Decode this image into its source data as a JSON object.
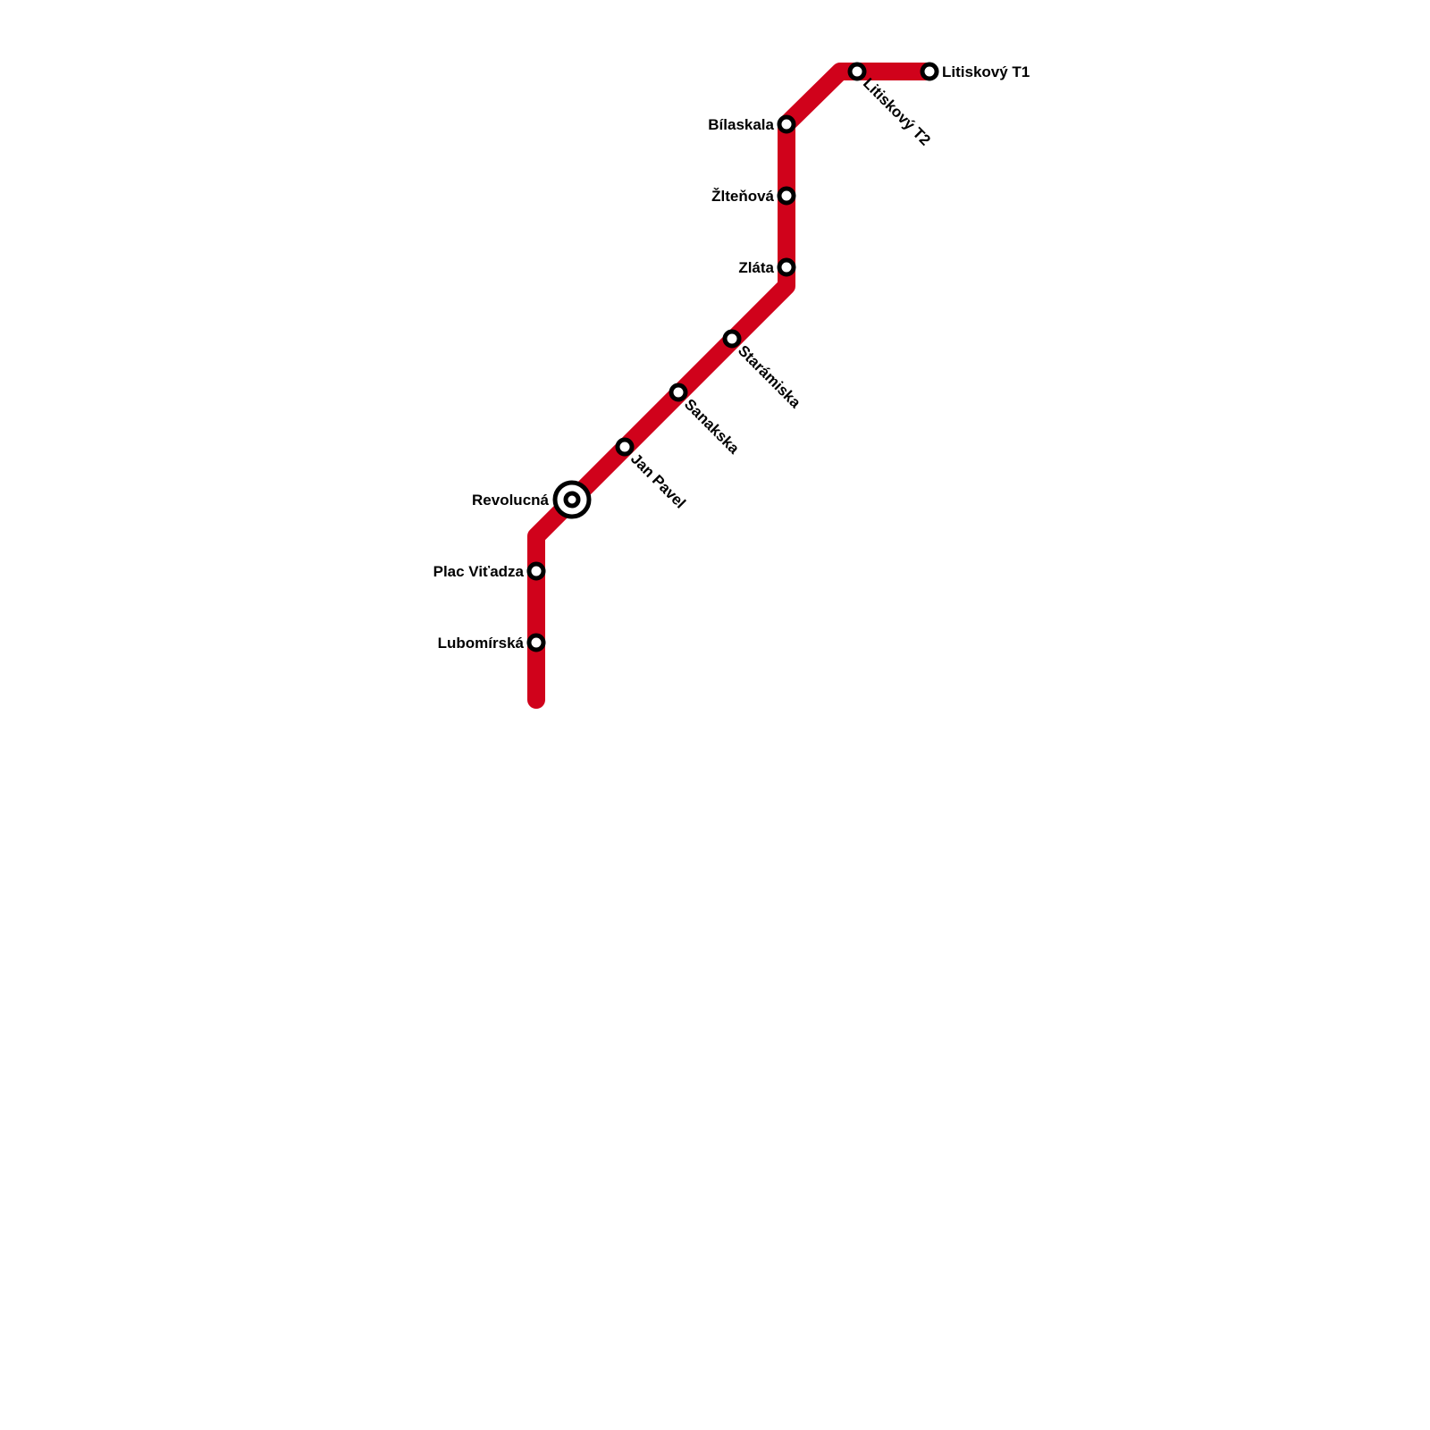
{
  "line": {
    "color": "#d0021b"
  },
  "stations": [
    {
      "id": "litiskovy-t1",
      "name": "Litiskový T1",
      "type": "station"
    },
    {
      "id": "litiskovy-t2",
      "name": "Litiskový T2",
      "type": "station"
    },
    {
      "id": "bilaskala",
      "name": "Bílaskala",
      "type": "station"
    },
    {
      "id": "zltenova",
      "name": "Žlteňová",
      "type": "station"
    },
    {
      "id": "zlata",
      "name": "Zláta",
      "type": "station"
    },
    {
      "id": "staramiska",
      "name": "Starámiska",
      "type": "station"
    },
    {
      "id": "sanakska",
      "name": "Sanakska",
      "type": "station"
    },
    {
      "id": "jan-pavel",
      "name": "Jan Pavel",
      "type": "station"
    },
    {
      "id": "revolucna",
      "name": "Revolucná",
      "type": "interchange"
    },
    {
      "id": "plac-vitadza",
      "name": "Plac Viťadza",
      "type": "station"
    },
    {
      "id": "lubomirska",
      "name": "Lubomírská",
      "type": "station"
    }
  ]
}
